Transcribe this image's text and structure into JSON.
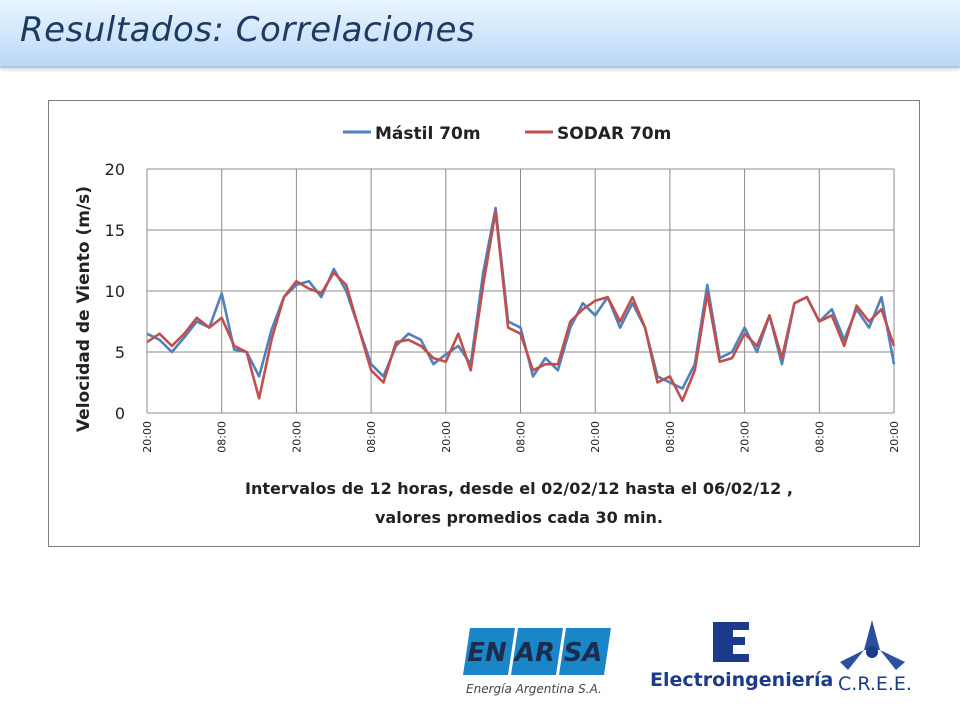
{
  "slide": {
    "title": "Resultados:  Correlaciones"
  },
  "chart_data": {
    "type": "line",
    "legend": [
      "Mástil 70m",
      "SODAR 70m"
    ],
    "legend_position": "top",
    "ylabel": "Velocidad de Viento (m/s)",
    "xlabel_line1": "Intervalos de 12 horas, desde el  02/02/12   hasta el  06/02/12 ,",
    "xlabel_line2": "valores promedios cada 30 min.",
    "ylim": [
      0,
      20
    ],
    "yticks": [
      "0",
      "5",
      "10",
      "15",
      "20"
    ],
    "xticks": [
      "20:00",
      "08:00",
      "20:00",
      "08:00",
      "20:00",
      "08:00",
      "20:00",
      "08:00",
      "20:00",
      "08:00",
      "20:00"
    ],
    "grid": true,
    "colors": {
      "mastil": "#4f81bd",
      "sodar": "#c0504d"
    },
    "series": [
      {
        "name": "Mástil 70m",
        "x_hours": [
          0,
          2,
          4,
          6,
          8,
          10,
          12,
          14,
          16,
          18,
          20,
          22,
          24,
          26,
          28,
          30,
          32,
          34,
          36,
          38,
          40,
          42,
          44,
          46,
          48,
          50,
          52,
          54,
          56,
          58,
          60,
          62,
          64,
          66,
          68,
          70,
          72,
          74,
          76,
          78,
          80,
          82,
          84,
          86,
          88,
          90,
          92,
          94,
          96,
          98,
          100,
          102,
          104,
          106,
          108,
          110,
          112,
          114,
          116,
          118,
          120
        ],
        "values": [
          6.5,
          6.0,
          5.0,
          6.2,
          7.5,
          7.0,
          9.8,
          5.2,
          5.0,
          3.0,
          6.8,
          9.5,
          10.5,
          10.8,
          9.5,
          11.8,
          10.0,
          7.0,
          4.0,
          3.0,
          5.5,
          6.5,
          6.0,
          4.0,
          4.8,
          5.5,
          4.0,
          11.5,
          16.8,
          7.5,
          7.0,
          3.0,
          4.5,
          3.5,
          7.0,
          9.0,
          8.0,
          9.5,
          7.0,
          9.0,
          7.0,
          3.0,
          2.5,
          2.0,
          4.0,
          10.5,
          4.5,
          5.0,
          7.0,
          5.0,
          8.0,
          4.0,
          9.0,
          9.5,
          7.5,
          8.5,
          6.0,
          8.5,
          7.0,
          9.5,
          4.0
        ]
      },
      {
        "name": "SODAR 70m",
        "x_hours": [
          0,
          2,
          4,
          6,
          8,
          10,
          12,
          14,
          16,
          18,
          20,
          22,
          24,
          26,
          28,
          30,
          32,
          34,
          36,
          38,
          40,
          42,
          44,
          46,
          48,
          50,
          52,
          54,
          56,
          58,
          60,
          62,
          64,
          66,
          68,
          70,
          72,
          74,
          76,
          78,
          80,
          82,
          84,
          86,
          88,
          90,
          92,
          94,
          96,
          98,
          100,
          102,
          104,
          106,
          108,
          110,
          112,
          114,
          116,
          118,
          120
        ],
        "values": [
          5.8,
          6.5,
          5.5,
          6.5,
          7.8,
          7.0,
          7.8,
          5.5,
          5.0,
          1.2,
          6.0,
          9.5,
          10.8,
          10.2,
          9.8,
          11.5,
          10.5,
          7.0,
          3.5,
          2.5,
          5.8,
          6.0,
          5.5,
          4.5,
          4.2,
          6.5,
          3.5,
          10.5,
          16.5,
          7.0,
          6.5,
          3.5,
          4.0,
          4.0,
          7.5,
          8.5,
          9.2,
          9.5,
          7.5,
          9.5,
          7.0,
          2.5,
          3.0,
          1.0,
          3.5,
          9.8,
          4.2,
          4.5,
          6.5,
          5.5,
          8.0,
          4.5,
          9.0,
          9.5,
          7.5,
          8.0,
          5.5,
          8.8,
          7.5,
          8.5,
          5.5
        ]
      }
    ]
  },
  "logos": {
    "enarsa_parts": [
      "EN",
      "AR",
      "SA"
    ],
    "enarsa_sub": "Energía Argentina S.A.",
    "electro": "Electroingeniería",
    "cree": "C.R.E.E."
  }
}
